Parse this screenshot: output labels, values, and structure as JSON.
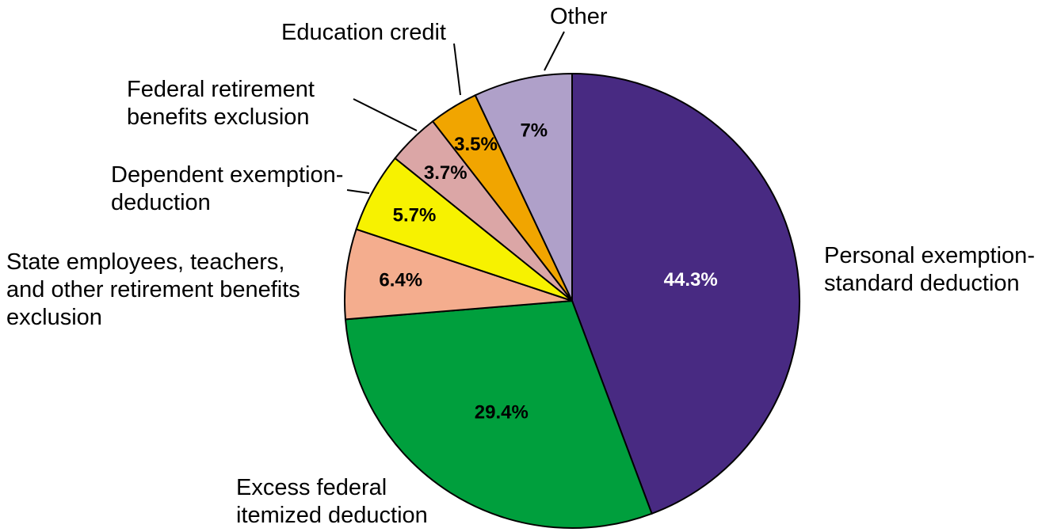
{
  "chart_data": {
    "type": "pie",
    "title": "",
    "slices": [
      {
        "label_lines": [
          "Personal exemption-",
          "standard deduction"
        ],
        "value": 44.3,
        "value_label": "44.3%",
        "color": "#482a82",
        "value_label_color": "#ffffff"
      },
      {
        "label_lines": [
          "Excess federal",
          "itemized deduction"
        ],
        "value": 29.4,
        "value_label": "29.4%",
        "color": "#009f3d",
        "value_label_color": "#000000"
      },
      {
        "label_lines": [
          "State employees, teachers,",
          "and other retirement benefits",
          "exclusion"
        ],
        "value": 6.4,
        "value_label": "6.4%",
        "color": "#f4ad8e",
        "value_label_color": "#000000"
      },
      {
        "label_lines": [
          "Dependent exemption-",
          "deduction"
        ],
        "value": 5.7,
        "value_label": "5.7%",
        "color": "#f7f200",
        "value_label_color": "#000000"
      },
      {
        "label_lines": [
          "Federal retirement",
          "benefits exclusion"
        ],
        "value": 3.7,
        "value_label": "3.7%",
        "color": "#dba6a6",
        "value_label_color": "#000000"
      },
      {
        "label_lines": [
          "Education credit"
        ],
        "value": 3.5,
        "value_label": "3.5%",
        "color": "#f1a500",
        "value_label_color": "#000000"
      },
      {
        "label_lines": [
          "Other"
        ],
        "value": 7.0,
        "value_label": "7%",
        "color": "#afa0c9",
        "value_label_color": "#000000"
      }
    ],
    "start_angle": "12 o'clock",
    "direction": "clockwise"
  }
}
